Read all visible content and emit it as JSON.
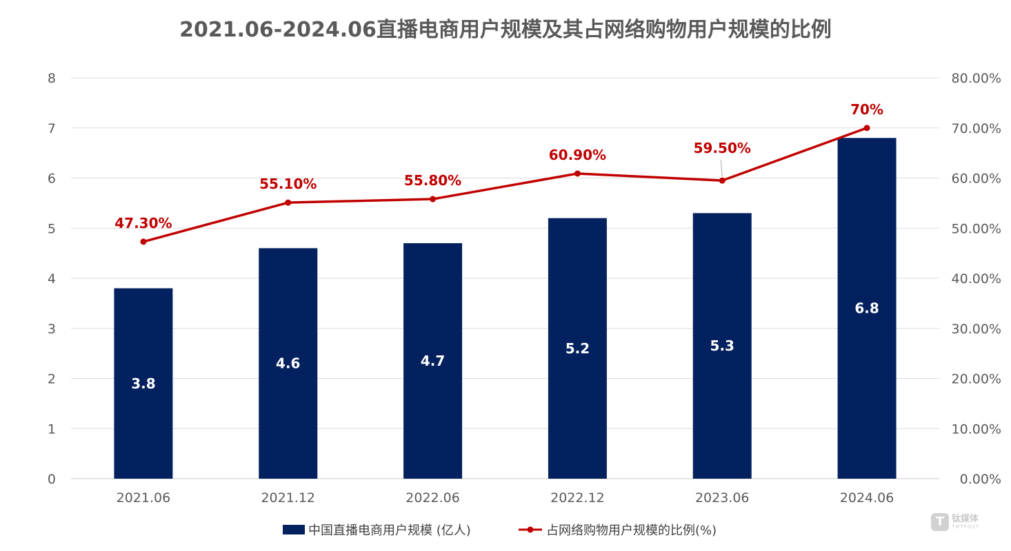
{
  "chart_data": {
    "type": "bar+line",
    "title": "2021.06-2024.06直播电商用户规模及其占网络购物用户规模的比例",
    "categories": [
      "2021.06",
      "2021.12",
      "2022.06",
      "2022.12",
      "2023.06",
      "2024.06"
    ],
    "series": [
      {
        "name": "中国直播电商用户规模 (亿人)",
        "type": "bar",
        "axis": "left",
        "values": [
          3.8,
          4.6,
          4.7,
          5.2,
          5.3,
          6.8
        ],
        "labels": [
          "3.8",
          "4.6",
          "4.7",
          "5.2",
          "5.3",
          "6.8"
        ],
        "color": "#03215e"
      },
      {
        "name": "占网络购物用户规模的比例(%)",
        "type": "line",
        "axis": "right",
        "values": [
          47.3,
          55.1,
          55.8,
          60.9,
          59.5,
          70.0
        ],
        "labels": [
          "47.30%",
          "55.10%",
          "55.80%",
          "60.90%",
          "59.50%",
          "70%"
        ],
        "color": "#c00000"
      }
    ],
    "y_left": {
      "ylim": [
        0,
        8
      ],
      "ticks": [
        "0",
        "1",
        "2",
        "3",
        "4",
        "5",
        "6",
        "7",
        "8"
      ]
    },
    "y_right": {
      "ylim": [
        0,
        80
      ],
      "ticks": [
        "0.00%",
        "10.00%",
        "20.00%",
        "30.00%",
        "40.00%",
        "50.00%",
        "60.00%",
        "70.00%",
        "80.00%"
      ]
    },
    "grid": true,
    "legend": "bottom-center"
  },
  "watermark": {
    "cn": "钛媒体",
    "en": "TMTPOST",
    "logo": "T"
  }
}
